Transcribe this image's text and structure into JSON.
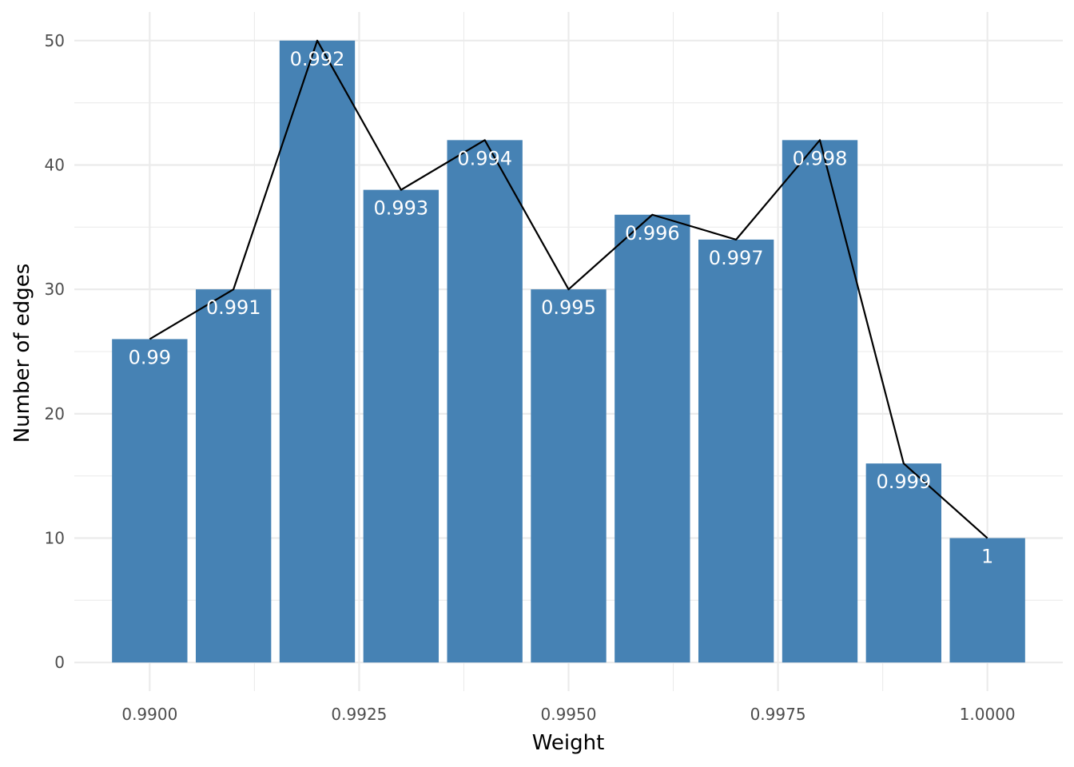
{
  "chart_data": {
    "type": "bar",
    "xlabel": "Weight",
    "ylabel": "Number of edges",
    "x": [
      0.99,
      0.991,
      0.992,
      0.993,
      0.994,
      0.995,
      0.996,
      0.997,
      0.998,
      0.999,
      1.0
    ],
    "values": [
      26,
      30,
      50,
      38,
      42,
      30,
      36,
      34,
      42,
      16,
      10
    ],
    "bar_labels": [
      "0.99",
      "0.991",
      "0.992",
      "0.993",
      "0.994",
      "0.995",
      "0.996",
      "0.997",
      "0.998",
      "0.999",
      "1"
    ],
    "xlim": [
      0.9891,
      1.0009
    ],
    "ylim": [
      -2.3,
      52.3
    ],
    "x_ticks": [
      0.99,
      0.9925,
      0.995,
      0.9975,
      1.0
    ],
    "x_tick_labels": [
      "0.9900",
      "0.9925",
      "0.9950",
      "0.9975",
      "1.0000"
    ],
    "y_ticks": [
      0,
      10,
      20,
      30,
      40,
      50
    ],
    "y_tick_labels": [
      "0",
      "10",
      "20",
      "30",
      "40",
      "50"
    ],
    "overlay_line": true,
    "grid": true,
    "legend": "none",
    "colors": {
      "bar": "#4682b4",
      "line": "#000000",
      "grid": "#ebebeb",
      "bar_label": "#ffffff"
    }
  }
}
